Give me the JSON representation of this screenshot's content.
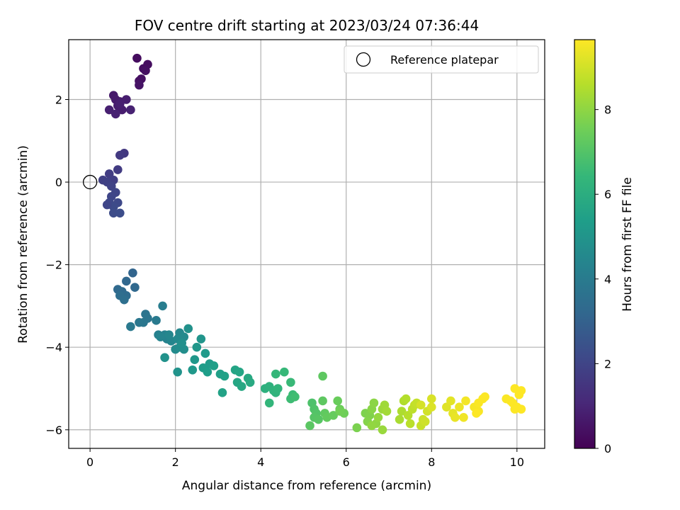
{
  "chart_data": {
    "type": "scatter",
    "title": "FOV centre drift starting at 2023/03/24 07:36:44",
    "xlabel": "Angular distance from reference (arcmin)",
    "ylabel": "Rotation from reference (arcmin)",
    "xlim": [
      -0.5,
      10.65
    ],
    "ylim": [
      -6.45,
      3.45
    ],
    "xticks": [
      0,
      2,
      4,
      6,
      8,
      10
    ],
    "yticks": [
      -6,
      -4,
      -2,
      0,
      2
    ],
    "grid": true,
    "legend": {
      "placement": "top-right",
      "entries": [
        {
          "label": "Reference platepar",
          "marker": "open-circle",
          "x": 0,
          "y": 0
        }
      ]
    },
    "colorbar": {
      "label": "Hours from first FF file",
      "range": [
        0,
        9.65
      ],
      "ticks": [
        0,
        2,
        4,
        6,
        8
      ],
      "colormap": "viridis",
      "colormap_stops": [
        "#440154",
        "#482878",
        "#3e4989",
        "#31688e",
        "#26828e",
        "#1f9e89",
        "#35b779",
        "#6ece58",
        "#b5de2b",
        "#fde725"
      ]
    },
    "series": [
      {
        "points": [
          [
            1.1,
            3.0,
            0.3
          ],
          [
            1.25,
            2.75,
            0.35
          ],
          [
            1.35,
            2.85,
            0.32
          ],
          [
            1.3,
            2.7,
            0.4
          ],
          [
            1.15,
            2.45,
            0.45
          ],
          [
            1.2,
            2.5,
            0.42
          ],
          [
            1.15,
            2.35,
            0.5
          ],
          [
            0.55,
            2.1,
            0.65
          ],
          [
            0.6,
            2.0,
            0.7
          ],
          [
            0.7,
            1.95,
            0.72
          ],
          [
            0.65,
            1.85,
            0.75
          ],
          [
            0.75,
            1.75,
            0.78
          ],
          [
            0.85,
            2.0,
            0.8
          ],
          [
            0.45,
            1.75,
            0.85
          ],
          [
            0.6,
            1.65,
            0.88
          ],
          [
            0.95,
            1.75,
            0.9
          ],
          [
            0.7,
            1.9,
            0.82
          ],
          [
            0.8,
            0.7,
            1.6
          ],
          [
            0.7,
            0.65,
            1.65
          ],
          [
            0.65,
            0.3,
            1.7
          ],
          [
            0.45,
            0.2,
            1.75
          ],
          [
            0.55,
            0.05,
            1.8
          ],
          [
            0.3,
            0.05,
            1.85
          ],
          [
            0.4,
            0.0,
            1.9
          ],
          [
            0.5,
            -0.1,
            1.95
          ],
          [
            0.6,
            -0.25,
            2.0
          ],
          [
            0.5,
            -0.35,
            2.05
          ],
          [
            0.45,
            -0.5,
            2.1
          ],
          [
            0.65,
            -0.5,
            2.15
          ],
          [
            0.55,
            -0.6,
            2.2
          ],
          [
            0.55,
            -0.75,
            2.25
          ],
          [
            0.7,
            -0.75,
            2.3
          ],
          [
            0.4,
            -0.55,
            2.05
          ],
          [
            1.0,
            -2.2,
            3.1
          ],
          [
            0.85,
            -2.4,
            3.2
          ],
          [
            1.05,
            -2.55,
            3.25
          ],
          [
            0.65,
            -2.6,
            3.3
          ],
          [
            0.75,
            -2.65,
            3.35
          ],
          [
            0.85,
            -2.75,
            3.4
          ],
          [
            0.7,
            -2.75,
            3.45
          ],
          [
            0.8,
            -2.85,
            3.5
          ],
          [
            1.3,
            -3.2,
            3.7
          ],
          [
            1.35,
            -3.3,
            3.75
          ],
          [
            1.25,
            -3.4,
            3.8
          ],
          [
            1.15,
            -3.4,
            3.85
          ],
          [
            0.95,
            -3.5,
            3.9
          ],
          [
            1.55,
            -3.35,
            3.95
          ],
          [
            1.7,
            -3.0,
            4.1
          ],
          [
            1.6,
            -3.7,
            4.2
          ],
          [
            1.75,
            -3.7,
            4.25
          ],
          [
            1.8,
            -3.8,
            4.3
          ],
          [
            1.65,
            -3.75,
            4.35
          ],
          [
            1.9,
            -3.85,
            4.4
          ],
          [
            1.85,
            -3.7,
            4.45
          ],
          [
            2.1,
            -3.65,
            4.5
          ],
          [
            2.05,
            -3.8,
            4.55
          ],
          [
            2.2,
            -3.75,
            4.6
          ],
          [
            2.0,
            -4.05,
            4.65
          ],
          [
            2.1,
            -4.0,
            4.7
          ],
          [
            2.2,
            -4.05,
            4.75
          ],
          [
            2.15,
            -3.9,
            4.8
          ],
          [
            2.3,
            -3.55,
            4.85
          ],
          [
            1.75,
            -4.25,
            4.9
          ],
          [
            2.05,
            -4.6,
            4.95
          ],
          [
            2.6,
            -3.8,
            5.0
          ],
          [
            2.5,
            -4.0,
            5.05
          ],
          [
            2.45,
            -4.3,
            5.1
          ],
          [
            2.4,
            -4.55,
            5.15
          ],
          [
            2.7,
            -4.15,
            5.2
          ],
          [
            2.8,
            -4.4,
            5.25
          ],
          [
            2.65,
            -4.5,
            5.3
          ],
          [
            2.75,
            -4.6,
            5.35
          ],
          [
            2.9,
            -4.45,
            5.4
          ],
          [
            3.05,
            -4.65,
            5.45
          ],
          [
            3.15,
            -4.7,
            5.5
          ],
          [
            3.1,
            -5.1,
            5.55
          ],
          [
            3.4,
            -4.55,
            5.6
          ],
          [
            3.5,
            -4.6,
            5.65
          ],
          [
            3.45,
            -4.85,
            5.7
          ],
          [
            3.55,
            -4.95,
            5.75
          ],
          [
            3.7,
            -4.75,
            5.8
          ],
          [
            3.75,
            -4.85,
            5.85
          ],
          [
            4.1,
            -5.0,
            6.1
          ],
          [
            4.2,
            -4.95,
            6.15
          ],
          [
            4.3,
            -5.05,
            6.2
          ],
          [
            4.35,
            -5.1,
            6.25
          ],
          [
            4.4,
            -5.0,
            6.3
          ],
          [
            4.2,
            -5.35,
            6.35
          ],
          [
            4.35,
            -4.65,
            6.4
          ],
          [
            4.55,
            -4.6,
            6.45
          ],
          [
            4.7,
            -4.85,
            6.5
          ],
          [
            4.75,
            -5.15,
            6.55
          ],
          [
            4.7,
            -5.25,
            6.6
          ],
          [
            4.8,
            -5.2,
            6.65
          ],
          [
            5.2,
            -5.35,
            6.9
          ],
          [
            5.25,
            -5.5,
            6.95
          ],
          [
            5.3,
            -5.6,
            7.0
          ],
          [
            5.25,
            -5.7,
            7.05
          ],
          [
            5.35,
            -5.75,
            7.1
          ],
          [
            5.15,
            -5.9,
            7.15
          ],
          [
            5.45,
            -5.3,
            7.2
          ],
          [
            5.5,
            -5.6,
            7.25
          ],
          [
            5.55,
            -5.7,
            7.3
          ],
          [
            5.7,
            -5.65,
            7.35
          ],
          [
            5.45,
            -4.7,
            7.2
          ],
          [
            5.8,
            -5.3,
            7.4
          ],
          [
            5.85,
            -5.5,
            7.45
          ],
          [
            5.95,
            -5.6,
            7.5
          ],
          [
            5.85,
            -5.55,
            7.55
          ],
          [
            6.25,
            -5.95,
            7.7
          ],
          [
            6.45,
            -5.6,
            7.75
          ],
          [
            6.55,
            -5.65,
            7.8
          ],
          [
            6.5,
            -5.8,
            7.85
          ],
          [
            6.6,
            -5.5,
            7.9
          ],
          [
            6.65,
            -5.35,
            7.95
          ],
          [
            6.7,
            -5.85,
            8.0
          ],
          [
            6.6,
            -5.9,
            8.05
          ],
          [
            6.75,
            -5.7,
            8.1
          ],
          [
            6.85,
            -6.0,
            8.15
          ],
          [
            6.85,
            -5.5,
            8.2
          ],
          [
            6.9,
            -5.4,
            8.25
          ],
          [
            6.95,
            -5.55,
            8.3
          ],
          [
            7.25,
            -5.75,
            8.4
          ],
          [
            7.3,
            -5.55,
            8.45
          ],
          [
            7.35,
            -5.3,
            8.5
          ],
          [
            7.4,
            -5.25,
            8.55
          ],
          [
            7.45,
            -5.65,
            8.6
          ],
          [
            7.5,
            -5.85,
            8.65
          ],
          [
            7.55,
            -5.5,
            8.7
          ],
          [
            7.6,
            -5.4,
            8.75
          ],
          [
            7.65,
            -5.35,
            8.8
          ],
          [
            7.75,
            -5.9,
            8.85
          ],
          [
            7.8,
            -5.75,
            8.9
          ],
          [
            7.85,
            -5.8,
            8.95
          ],
          [
            7.9,
            -5.55,
            9.0
          ],
          [
            7.75,
            -5.4,
            9.05
          ],
          [
            8.0,
            -5.25,
            9.1
          ],
          [
            8.0,
            -5.45,
            9.15
          ],
          [
            8.35,
            -5.45,
            9.2
          ],
          [
            8.45,
            -5.3,
            9.25
          ],
          [
            8.5,
            -5.6,
            9.3
          ],
          [
            8.55,
            -5.7,
            9.35
          ],
          [
            8.65,
            -5.45,
            9.4
          ],
          [
            8.75,
            -5.7,
            9.45
          ],
          [
            8.8,
            -5.3,
            9.5
          ],
          [
            9.0,
            -5.45,
            9.55
          ],
          [
            9.1,
            -5.55,
            9.58
          ],
          [
            9.1,
            -5.35,
            9.6
          ],
          [
            9.2,
            -5.25,
            9.62
          ],
          [
            9.25,
            -5.2,
            9.64
          ],
          [
            9.05,
            -5.6,
            9.63
          ],
          [
            9.75,
            -5.25,
            9.6
          ],
          [
            9.85,
            -5.3,
            9.62
          ],
          [
            9.9,
            -5.35,
            9.64
          ],
          [
            9.95,
            -5.0,
            9.65
          ],
          [
            10.1,
            -5.05,
            9.65
          ],
          [
            10.0,
            -5.45,
            9.65
          ],
          [
            10.1,
            -5.5,
            9.65
          ],
          [
            9.95,
            -5.5,
            9.64
          ],
          [
            10.05,
            -5.15,
            9.65
          ]
        ]
      }
    ]
  }
}
